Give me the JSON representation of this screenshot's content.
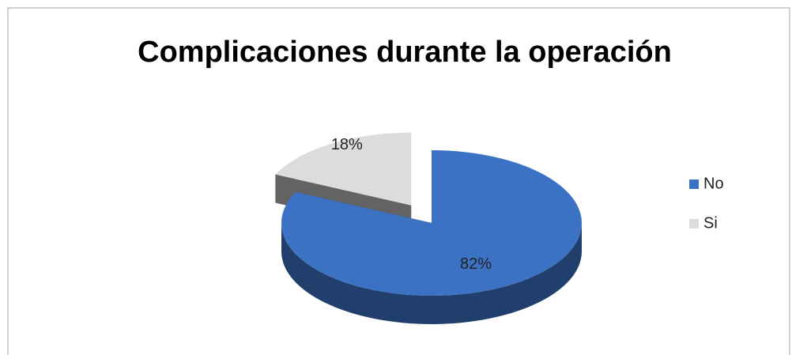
{
  "chart_data": {
    "type": "pie",
    "title": "Complicaciones durante la operación",
    "categories": [
      "No",
      "Si"
    ],
    "values": [
      82,
      18
    ],
    "value_labels": [
      "82%",
      "18%"
    ],
    "colors": [
      "#3c72c4",
      "#dcdcdc"
    ],
    "legend": "right"
  }
}
